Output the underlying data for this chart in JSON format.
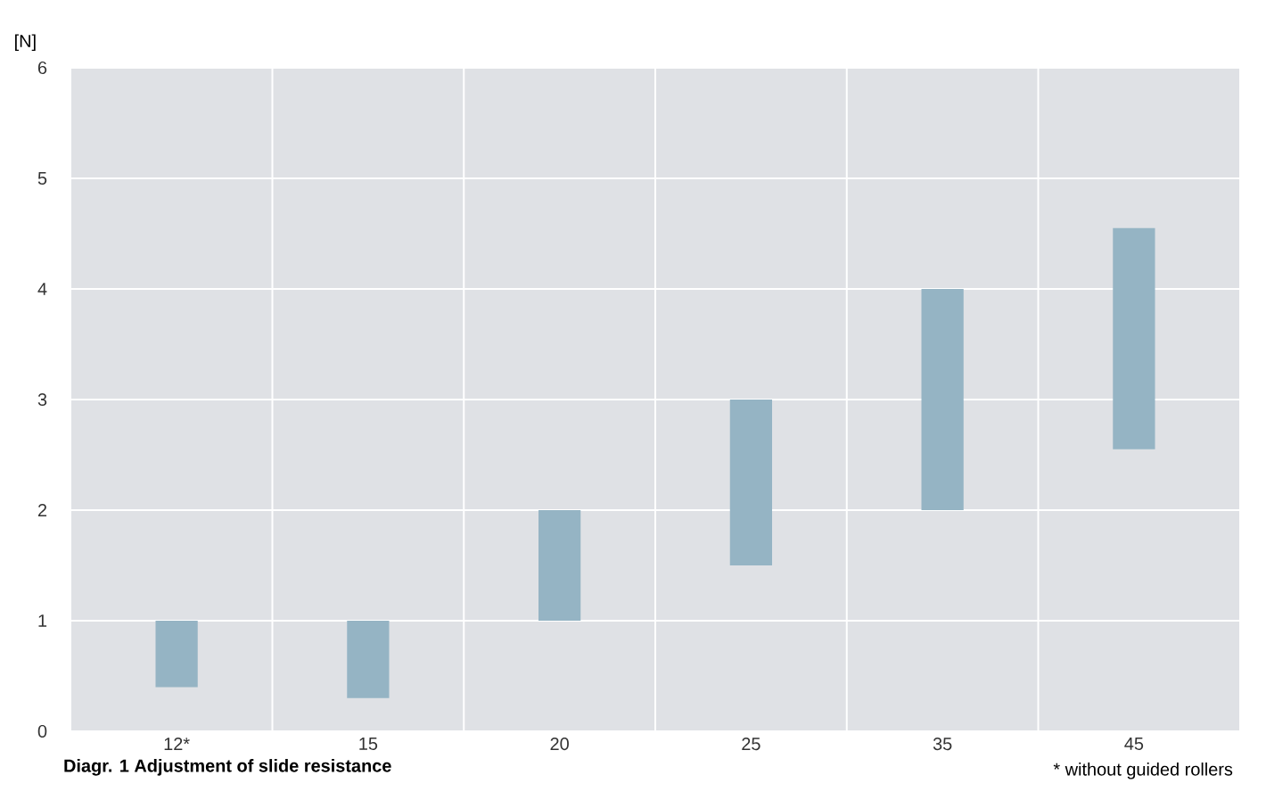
{
  "chart_data": {
    "type": "bar",
    "title": "Diagr. 1 Adjustment of slide resistance",
    "ylabel": "[N]",
    "annotations": [
      "* without guided rollers"
    ],
    "categories": [
      "12*",
      "15",
      "20",
      "25",
      "35",
      "45"
    ],
    "base": [
      0.4,
      0.3,
      1.0,
      1.5,
      2.0,
      2.55
    ],
    "values": [
      0.6,
      0.7,
      1.0,
      1.5,
      2.0,
      2.0
    ],
    "color": "#95b4c4",
    "ylim": [
      0,
      6
    ],
    "yticks": [
      0,
      1,
      2,
      3,
      4,
      5,
      6
    ],
    "grid": true
  }
}
